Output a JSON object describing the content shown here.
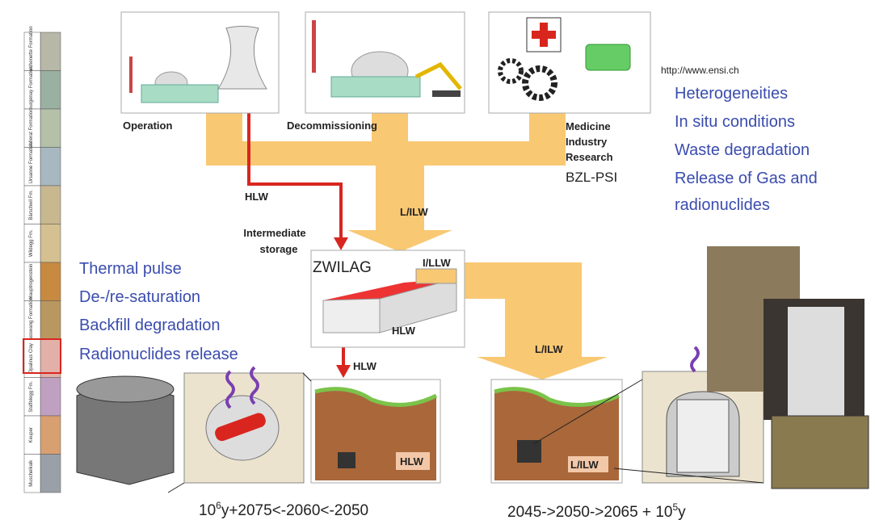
{
  "sources": {
    "operation": "Operation",
    "decommissioning": "Decommissioning",
    "medicine": [
      "Medicine",
      "Industry",
      "Research"
    ],
    "bzl": "BZL-PSI"
  },
  "url": "http://www.ensi.ch",
  "repository_issues": [
    "Heterogeneities",
    "In situ conditions",
    "Waste degradation",
    "Release of Gas and",
    "radionuclides"
  ],
  "flows": {
    "hlw_source": "HLW",
    "lilw_source": "L/ILW",
    "intermediate_storage": [
      "Intermediate",
      "storage"
    ],
    "zwilag": "ZWILAG",
    "ilw_label": "I/LLW",
    "hlw_building": "HLW",
    "hlw_arrow": "HLW",
    "lilw_arrow": "L/ILW"
  },
  "hlw_issues": [
    "Thermal pulse",
    "De-/re-saturation",
    "Backfill degradation",
    "Radionuclides release"
  ],
  "repositories": {
    "hlw": "HLW",
    "lilw": "L/ILW"
  },
  "formations": [
    "Reuchenette Formation",
    "Courgenay Formation",
    "Vellerat Formation",
    "St. Ursanne Formation",
    "Bärschwil Fm.",
    "Wildegg Fm.",
    "Hauptrogenstein",
    "Passwang Formation",
    "Opalinus Clay",
    "Staffelegg Fm.",
    "Keuper",
    "Muschelkalk"
  ],
  "timelines": {
    "hlw": {
      "base": "10",
      "exp": "6",
      "rest": "y+2075<-2060<-2050"
    },
    "lilw": {
      "lead": "2045->2050->2065 + ",
      "base": "10",
      "exp": "5",
      "rest": "y"
    }
  }
}
